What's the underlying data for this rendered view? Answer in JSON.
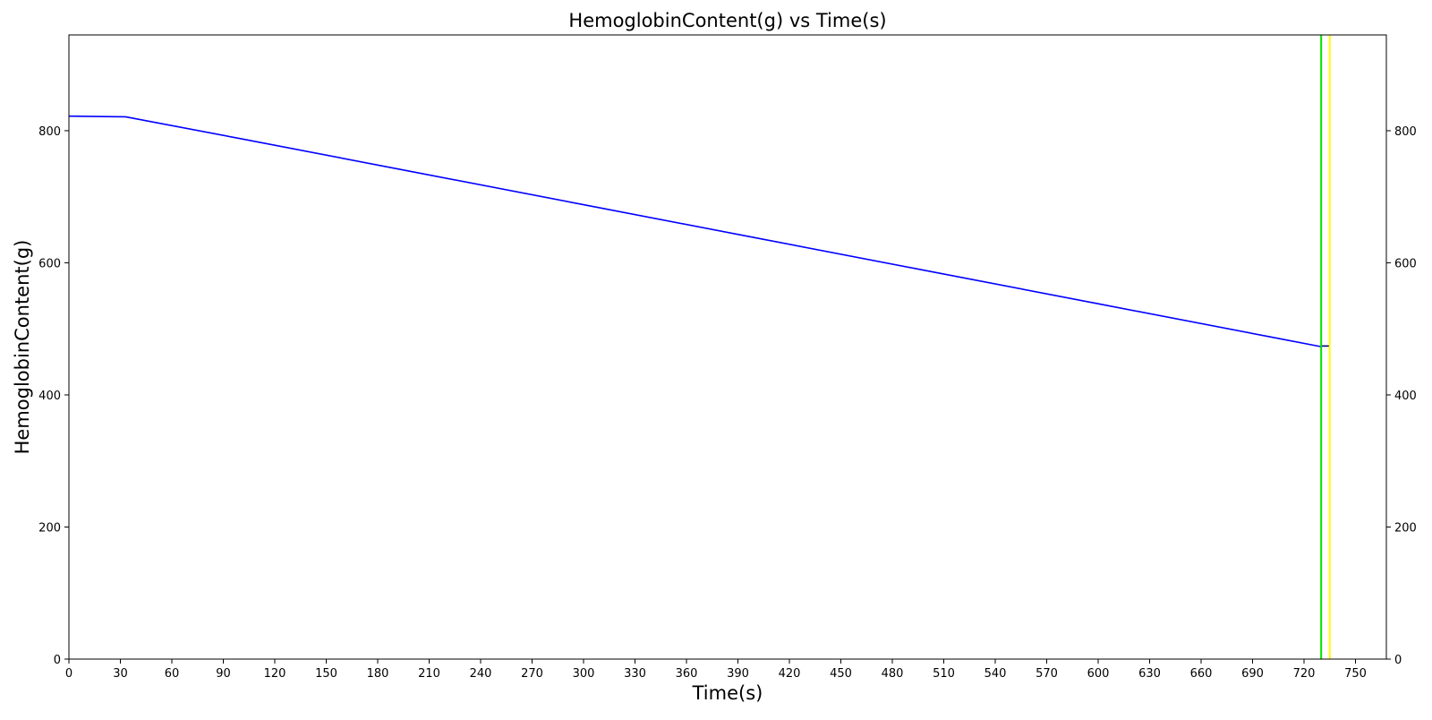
{
  "chart_data": {
    "type": "line",
    "title": "HemoglobinContent(g) vs Time(s)",
    "xlabel": "Time(s)",
    "ylabel": "HemoglobinContent(g)",
    "xlim": [
      0,
      768
    ],
    "ylim": [
      0,
      945
    ],
    "x_ticks": [
      0,
      30,
      60,
      90,
      120,
      150,
      180,
      210,
      240,
      270,
      300,
      330,
      360,
      390,
      420,
      450,
      480,
      510,
      540,
      570,
      600,
      630,
      660,
      690,
      720,
      750
    ],
    "y_ticks": [
      0,
      200,
      400,
      600,
      800
    ],
    "y_ticks_right": [
      0,
      200,
      400,
      600,
      800
    ],
    "grid": false,
    "legend": "none",
    "series": [
      {
        "color": "#0000ff",
        "x": [
          0,
          33,
          100,
          200,
          300,
          400,
          500,
          600,
          700,
          730
        ],
        "y": [
          822,
          821,
          788,
          738,
          688,
          638,
          588,
          538,
          488,
          473
        ]
      },
      {
        "color": "#000080",
        "x": [
          730,
          735
        ],
        "y": [
          474,
          474
        ]
      }
    ],
    "vertical_lines": [
      {
        "x": 730,
        "color": "#00e000"
      },
      {
        "x": 735,
        "color": "#ffff00"
      }
    ]
  }
}
